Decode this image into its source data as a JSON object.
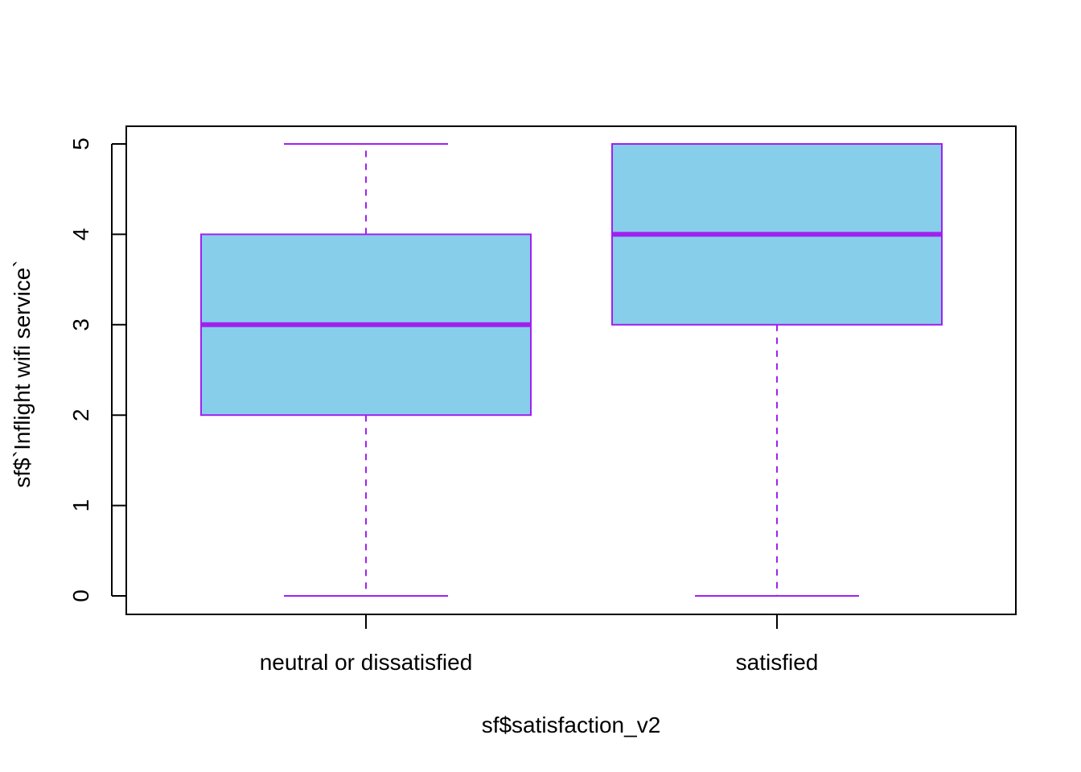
{
  "chart_data": {
    "type": "box",
    "title": "",
    "xlabel": "sf$satisfaction_v2",
    "ylabel": "sf$`Inflight wifi service`",
    "ylim": [
      0,
      5
    ],
    "yticks": [
      "0",
      "1",
      "2",
      "3",
      "4",
      "5"
    ],
    "categories": [
      "neutral or dissatisfied",
      "satisfied"
    ],
    "boxes": [
      {
        "category": "neutral or dissatisfied",
        "min": 0,
        "q1": 2,
        "median": 3,
        "q3": 4,
        "max": 5
      },
      {
        "category": "satisfied",
        "min": 0,
        "q1": 3,
        "median": 4,
        "q3": 5,
        "max": 5
      }
    ],
    "grid": false,
    "legend": "none",
    "colors": {
      "box_fill": "#87CEEB",
      "box_border": "#A020F0",
      "axis": "#000000"
    }
  }
}
